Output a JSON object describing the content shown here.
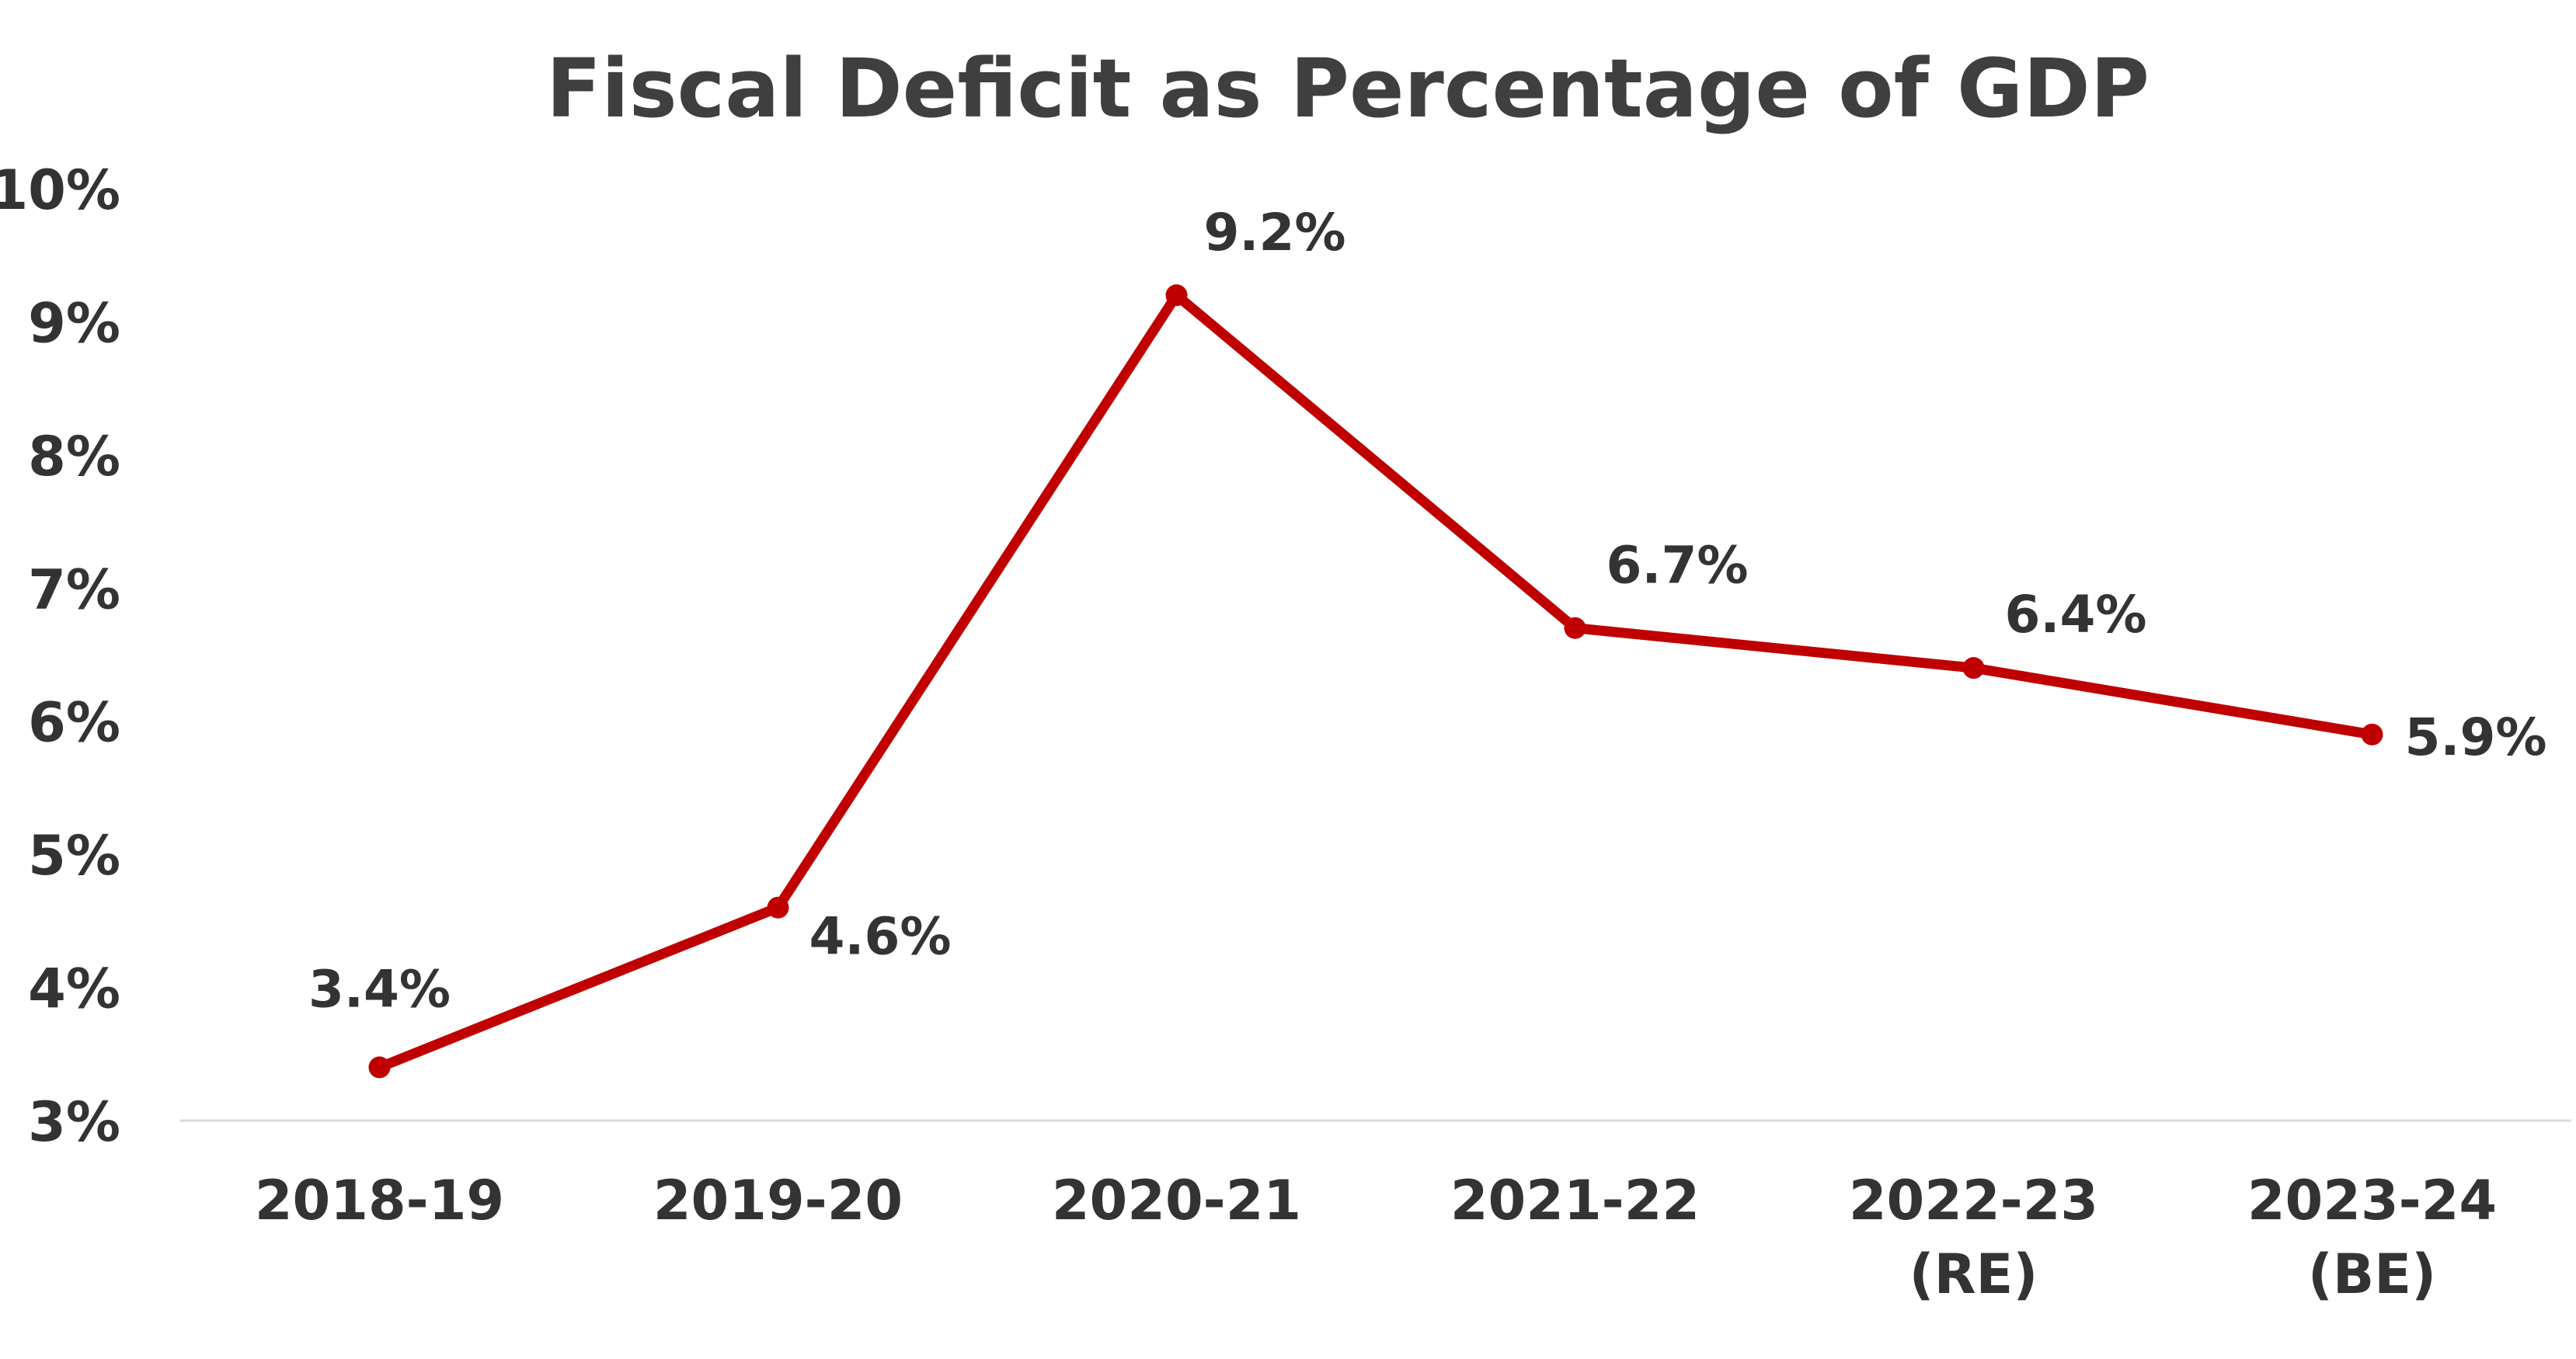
{
  "chart_data": {
    "type": "line",
    "title": "Fiscal Deficit as Percentage of GDP",
    "xlabel": "",
    "ylabel": "",
    "categories": [
      [
        "2018-19"
      ],
      [
        "2019-20"
      ],
      [
        "2020-21"
      ],
      [
        "2021-22"
      ],
      [
        "2022-23",
        "(RE)"
      ],
      [
        "2023-24",
        "(BE)"
      ]
    ],
    "series": [
      {
        "values": [
          3.4,
          4.6,
          9.2,
          6.7,
          6.4,
          5.9
        ],
        "data_labels": [
          "3.4%",
          "4.6%",
          "9.2%",
          "6.7%",
          "6.4%",
          "5.9%"
        ],
        "color": "#c00000"
      }
    ],
    "ylim": [
      3,
      10
    ],
    "yticks": [
      3,
      4,
      5,
      6,
      7,
      8,
      9,
      10
    ],
    "ytick_labels": [
      "3%",
      "4%",
      "5%",
      "6%",
      "7%",
      "8%",
      "9%",
      "10%"
    ],
    "grid": false,
    "legend": "none",
    "colors": {
      "line": "#c00000",
      "title": "#3f3f3f",
      "text": "#333333",
      "axis": "#d9d9d9"
    }
  }
}
